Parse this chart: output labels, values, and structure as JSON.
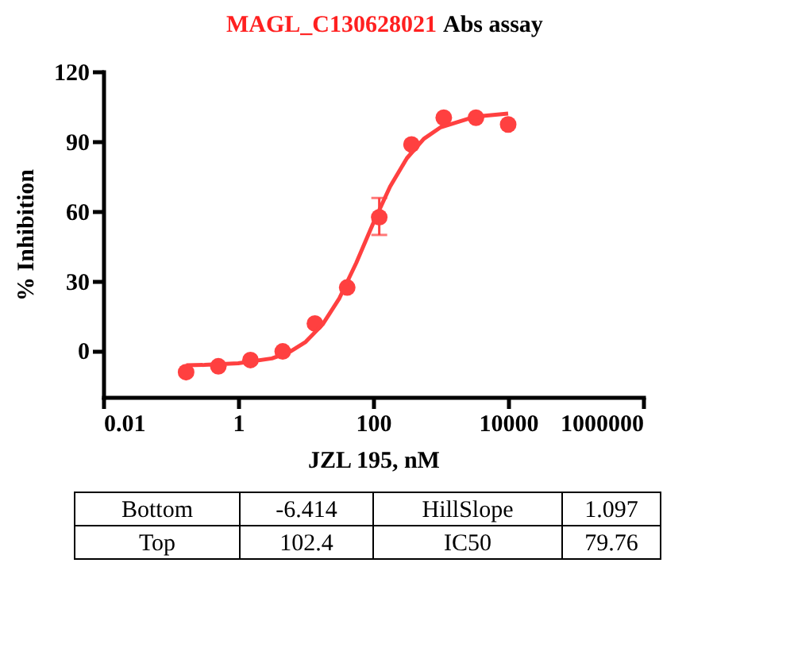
{
  "chart_data": {
    "type": "scatter",
    "title": "MAGL_C130628021 Abs assay",
    "xlabel": "JZL 195, nM",
    "ylabel": "% Inhibition",
    "log": "x",
    "xlim": [
      0.01,
      1000000
    ],
    "xticks": [
      0.01,
      1,
      100,
      10000,
      1000000
    ],
    "ylim": [
      -20,
      120
    ],
    "yticks": [
      0,
      30,
      60,
      90,
      120
    ],
    "grid": false,
    "series": [
      {
        "marker": "circle",
        "color": "#ff4040",
        "x": [
          0.169,
          0.508,
          1.52,
          4.57,
          13.7,
          41.2,
          123,
          370,
          1111,
          3333,
          10000
        ],
        "values": [
          -9.3,
          -6.8,
          -4.1,
          -0.4,
          11.6,
          27.1,
          57.3,
          88.6,
          100.1,
          100.1,
          97.2
        ],
        "errors": [
          null,
          null,
          null,
          null,
          null,
          null,
          [
            49.7,
            65.6
          ],
          null,
          null,
          null,
          null
        ]
      },
      {
        "type": "line",
        "line_style": "solid",
        "color": "#ff4040",
        "x": [
          0.17,
          0.316,
          1,
          3.16,
          5.62,
          10,
          17.8,
          31.6,
          56.2,
          79.76,
          100,
          178,
          316,
          562,
          1000,
          3162,
          10000
        ],
        "values": [
          -6.3,
          -6.2,
          -5.5,
          -3.4,
          -0.8,
          3.7,
          11.2,
          22.5,
          37.7,
          48.0,
          54.7,
          70.5,
          82.7,
          91.0,
          96.0,
          100.5,
          101.9
        ]
      }
    ],
    "annotations": [
      "Bottom",
      "-6.414",
      "HillSlope",
      "1.097",
      "Top",
      "102.4",
      "IC50",
      "79.76"
    ]
  }
}
